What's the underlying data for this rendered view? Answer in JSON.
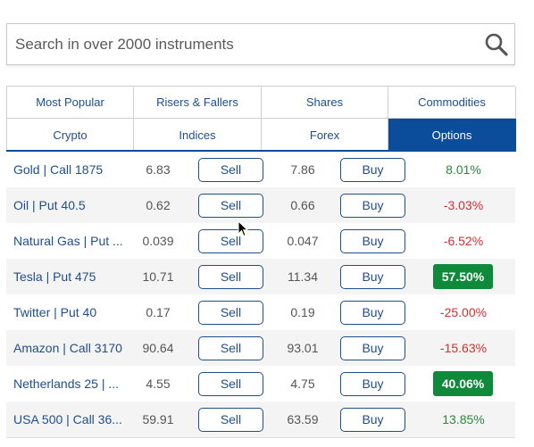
{
  "search": {
    "placeholder": "Search in over 2000 instruments",
    "icon": "search-icon"
  },
  "tabs": [
    {
      "label": "Most Popular",
      "active": false
    },
    {
      "label": "Risers & Fallers",
      "active": false
    },
    {
      "label": "Shares",
      "active": false
    },
    {
      "label": "Commodities",
      "active": false
    },
    {
      "label": "Crypto",
      "active": false
    },
    {
      "label": "Indices",
      "active": false
    },
    {
      "label": "Forex",
      "active": false
    },
    {
      "label": "Options",
      "active": true
    }
  ],
  "buttons": {
    "sell": "Sell",
    "buy": "Buy"
  },
  "rows": [
    {
      "name": "Gold | Call 1875",
      "sell": "6.83",
      "buy": "7.86",
      "change": "8.01%",
      "direction": "up",
      "highlight": false
    },
    {
      "name": "Oil | Put 40.5",
      "sell": "0.62",
      "buy": "0.66",
      "change": "-3.03%",
      "direction": "down",
      "highlight": false
    },
    {
      "name": "Natural Gas | Put ...",
      "sell": "0.039",
      "buy": "0.047",
      "change": "-6.52%",
      "direction": "down",
      "highlight": false
    },
    {
      "name": "Tesla | Put 475",
      "sell": "10.71",
      "buy": "11.34",
      "change": "57.50%",
      "direction": "up",
      "highlight": true
    },
    {
      "name": "Twitter | Put 40",
      "sell": "0.17",
      "buy": "0.19",
      "change": "-25.00%",
      "direction": "down",
      "highlight": false
    },
    {
      "name": "Amazon | Call 3170",
      "sell": "90.64",
      "buy": "93.01",
      "change": "-15.63%",
      "direction": "down",
      "highlight": false
    },
    {
      "name": "Netherlands 25 | ...",
      "sell": "4.55",
      "buy": "4.75",
      "change": "40.06%",
      "direction": "up",
      "highlight": true
    },
    {
      "name": "USA 500 | Call 36...",
      "sell": "59.91",
      "buy": "63.59",
      "change": "13.85%",
      "direction": "up",
      "highlight": false
    }
  ],
  "colors": {
    "accent": "#0b4d9a",
    "link": "#1f4e8c",
    "positive": "#2a8a3a",
    "negative": "#d03030",
    "highlight_bg": "#0f8a3a"
  }
}
